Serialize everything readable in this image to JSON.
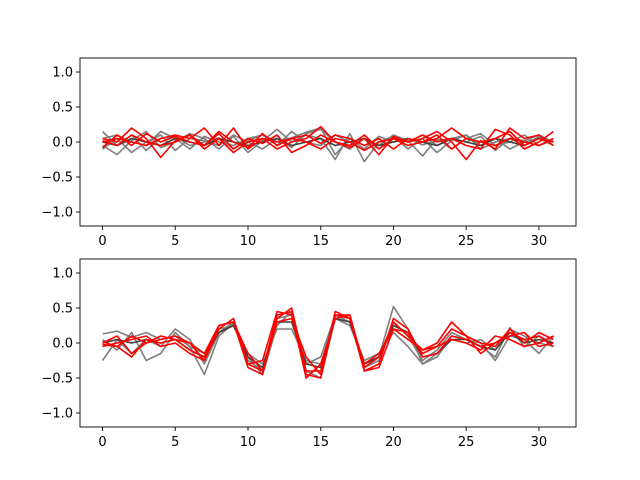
{
  "chart_data": [
    {
      "type": "line",
      "title": "",
      "xlabel": "",
      "ylabel": "",
      "xlim": [
        -1.55,
        32.55
      ],
      "ylim": [
        -1.2,
        1.2
      ],
      "xticks": [
        0,
        5,
        10,
        15,
        20,
        25,
        30
      ],
      "yticks": [
        -1.0,
        -0.5,
        0.0,
        0.5,
        1.0
      ],
      "xtick_labels": [
        "0",
        "5",
        "10",
        "15",
        "20",
        "25",
        "30"
      ],
      "ytick_labels": [
        "−1.0",
        "−0.5",
        "0.0",
        "0.5",
        "1.0"
      ],
      "grid": false,
      "x": [
        0,
        1,
        2,
        3,
        4,
        5,
        6,
        7,
        8,
        9,
        10,
        11,
        12,
        13,
        14,
        15,
        16,
        17,
        18,
        19,
        20,
        21,
        22,
        23,
        24,
        25,
        26,
        27,
        28,
        29,
        30,
        31
      ],
      "series": [
        {
          "color": "#7f7f7f",
          "values": [
            0.15,
            -0.05,
            0.1,
            -0.12,
            0.05,
            0.08,
            -0.05,
            0.0,
            0.06,
            -0.1,
            0.02,
            0.1,
            0.0,
            0.06,
            0.14,
            0.2,
            -0.18,
            0.05,
            -0.1,
            0.08,
            0.0,
            0.05,
            -0.04,
            0.02,
            0.05,
            0.0,
            0.08,
            -0.12,
            0.05,
            0.02,
            0.1,
            0.0
          ]
        },
        {
          "color": "#7f7f7f",
          "values": [
            -0.05,
            -0.18,
            0.02,
            0.15,
            -0.08,
            0.0,
            0.12,
            0.05,
            -0.1,
            0.08,
            -0.15,
            0.02,
            0.18,
            0.0,
            0.1,
            0.05,
            -0.25,
            0.12,
            -0.28,
            0.0,
            0.08,
            -0.1,
            0.05,
            -0.15,
            0.02,
            0.1,
            -0.05,
            0.05,
            -0.1,
            0.0,
            0.05,
            -0.05
          ]
        },
        {
          "color": "#7f7f7f",
          "values": [
            -0.1,
            0.05,
            -0.15,
            0.0,
            0.1,
            -0.12,
            0.05,
            0.02,
            -0.05,
            0.1,
            0.0,
            -0.1,
            0.05,
            -0.08,
            0.12,
            0.18,
            0.0,
            -0.1,
            0.05,
            -0.05,
            0.1,
            0.02,
            -0.2,
            0.05,
            -0.1,
            0.05,
            0.12,
            -0.05,
            0.0,
            0.1,
            -0.05,
            0.02
          ]
        },
        {
          "color": "#7f7f7f",
          "values": [
            0.05,
            0.1,
            0.0,
            -0.05,
            0.15,
            0.05,
            -0.1,
            0.08,
            0.0,
            -0.05,
            0.05,
            0.1,
            -0.05,
            0.15,
            0.0,
            -0.05,
            0.1,
            0.0,
            0.05,
            -0.1,
            0.05,
            0.0,
            0.1,
            -0.05,
            0.05,
            0.1,
            -0.1,
            0.0,
            0.05,
            -0.05,
            0.08,
            0.0
          ]
        },
        {
          "color": "#3f3f3f",
          "values": [
            0.0,
            -0.05,
            0.05,
            0.0,
            -0.05,
            0.05,
            0.0,
            -0.05,
            0.05,
            0.0,
            -0.05,
            0.0,
            0.05,
            -0.05,
            0.0,
            0.05,
            -0.05,
            0.0,
            0.05,
            -0.05,
            0.0,
            0.05,
            0.0,
            -0.05,
            0.05,
            0.0,
            -0.05,
            0.05,
            0.0,
            -0.05,
            0.05,
            0.0
          ]
        },
        {
          "color": "#ff0000",
          "values": [
            0.05,
            0.0,
            0.2,
            0.05,
            -0.22,
            0.02,
            0.1,
            -0.05,
            0.12,
            -0.1,
            0.05,
            -0.02,
            0.1,
            -0.15,
            -0.05,
            0.1,
            0.0,
            -0.08,
            0.05,
            -0.18,
            0.08,
            0.0,
            0.05,
            0.15,
            0.0,
            -0.25,
            0.02,
            -0.1,
            0.2,
            0.05,
            0.1,
            -0.05
          ]
        },
        {
          "color": "#ff0000",
          "values": [
            -0.08,
            0.1,
            -0.05,
            0.12,
            0.0,
            0.08,
            0.0,
            -0.05,
            0.15,
            0.0,
            -0.08,
            0.12,
            -0.05,
            0.05,
            0.0,
            -0.1,
            0.05,
            0.0,
            -0.12,
            0.0,
            0.05,
            0.0,
            0.1,
            0.0,
            0.05,
            -0.05,
            -0.1,
            0.18,
            0.1,
            -0.1,
            0.0,
            0.15
          ]
        },
        {
          "color": "#ff0000",
          "values": [
            0.0,
            0.05,
            0.0,
            -0.05,
            0.05,
            0.1,
            0.05,
            0.2,
            -0.05,
            0.2,
            -0.1,
            0.05,
            0.0,
            0.05,
            0.1,
            -0.02,
            0.1,
            0.05,
            -0.05,
            0.05,
            -0.1,
            0.05,
            0.0,
            0.05,
            0.2,
            0.05,
            0.0,
            0.05,
            0.15,
            -0.05,
            0.05,
            0.0
          ]
        },
        {
          "color": "#ff0000",
          "values": [
            0.02,
            -0.05,
            0.1,
            0.0,
            -0.05,
            0.0,
            0.1,
            -0.1,
            0.05,
            -0.15,
            0.0,
            0.05,
            -0.1,
            0.0,
            0.05,
            0.22,
            0.0,
            -0.05,
            0.1,
            -0.1,
            0.05,
            -0.05,
            0.0,
            0.1,
            -0.1,
            0.05,
            0.0,
            -0.05,
            0.05,
            0.0,
            -0.05,
            0.05
          ]
        }
      ]
    },
    {
      "type": "line",
      "title": "",
      "xlabel": "",
      "ylabel": "",
      "xlim": [
        -1.55,
        32.55
      ],
      "ylim": [
        -1.2,
        1.2
      ],
      "xticks": [
        0,
        5,
        10,
        15,
        20,
        25,
        30
      ],
      "yticks": [
        -1.0,
        -0.5,
        0.0,
        0.5,
        1.0
      ],
      "xtick_labels": [
        "0",
        "5",
        "10",
        "15",
        "20",
        "25",
        "30"
      ],
      "ytick_labels": [
        "−1.0",
        "−0.5",
        "0.0",
        "0.5",
        "1.0"
      ],
      "grid": false,
      "x": [
        0,
        1,
        2,
        3,
        4,
        5,
        6,
        7,
        8,
        9,
        10,
        11,
        12,
        13,
        14,
        15,
        16,
        17,
        18,
        19,
        20,
        21,
        22,
        23,
        24,
        25,
        26,
        27,
        28,
        29,
        30,
        31
      ],
      "series": [
        {
          "color": "#7f7f7f",
          "values": [
            0.13,
            0.17,
            0.08,
            0.15,
            0.05,
            0.1,
            -0.05,
            -0.45,
            0.1,
            0.28,
            -0.2,
            -0.45,
            0.25,
            0.45,
            -0.3,
            -0.2,
            0.4,
            0.3,
            -0.3,
            -0.2,
            0.52,
            0.2,
            -0.3,
            -0.2,
            0.1,
            0.05,
            -0.05,
            -0.2,
            0.22,
            -0.05,
            0.1,
            0.0
          ]
        },
        {
          "color": "#7f7f7f",
          "values": [
            -0.25,
            0.05,
            -0.15,
            0.05,
            -0.05,
            0.2,
            0.05,
            -0.3,
            0.15,
            0.3,
            -0.25,
            -0.4,
            0.35,
            0.4,
            -0.4,
            -0.5,
            0.35,
            0.3,
            -0.35,
            -0.25,
            0.3,
            0.1,
            -0.25,
            -0.1,
            0.15,
            0.05,
            0.0,
            -0.25,
            0.1,
            0.05,
            -0.15,
            0.1
          ]
        },
        {
          "color": "#7f7f7f",
          "values": [
            0.05,
            -0.1,
            0.15,
            -0.25,
            -0.15,
            0.15,
            -0.05,
            -0.15,
            0.2,
            0.25,
            -0.15,
            -0.3,
            0.2,
            0.2,
            -0.25,
            -0.3,
            0.35,
            0.25,
            -0.25,
            -0.15,
            0.15,
            -0.05,
            -0.3,
            -0.15,
            0.05,
            0.0,
            0.05,
            -0.1,
            0.2,
            0.1,
            0.0,
            -0.05
          ]
        },
        {
          "color": "#3f3f3f",
          "values": [
            0.0,
            0.05,
            0.0,
            0.05,
            0.0,
            0.05,
            -0.1,
            -0.2,
            0.15,
            0.25,
            -0.2,
            -0.35,
            0.3,
            0.3,
            -0.3,
            -0.35,
            0.35,
            0.3,
            -0.3,
            -0.2,
            0.25,
            0.15,
            -0.2,
            -0.15,
            0.05,
            0.05,
            -0.05,
            -0.1,
            0.15,
            0.0,
            0.05,
            0.0
          ]
        },
        {
          "color": "#ff0000",
          "values": [
            0.0,
            0.1,
            -0.15,
            0.0,
            0.1,
            0.05,
            -0.1,
            -0.2,
            0.25,
            0.3,
            -0.15,
            -0.4,
            0.3,
            0.35,
            -0.2,
            -0.45,
            0.45,
            0.35,
            -0.4,
            -0.3,
            0.35,
            0.2,
            -0.2,
            -0.15,
            0.1,
            0.05,
            -0.05,
            0.0,
            0.1,
            0.15,
            -0.05,
            0.0
          ]
        },
        {
          "color": "#ff0000",
          "values": [
            -0.05,
            0.0,
            0.05,
            0.1,
            -0.05,
            0.0,
            -0.15,
            -0.25,
            0.2,
            0.35,
            -0.3,
            -0.4,
            0.4,
            0.45,
            -0.45,
            -0.5,
            0.4,
            0.4,
            -0.35,
            -0.2,
            0.3,
            0.1,
            -0.1,
            -0.05,
            0.2,
            0.1,
            -0.15,
            0.0,
            0.15,
            0.05,
            0.1,
            -0.05
          ]
        },
        {
          "color": "#ff0000",
          "values": [
            0.02,
            -0.05,
            0.1,
            0.0,
            0.05,
            0.1,
            0.0,
            -0.15,
            0.25,
            0.3,
            -0.35,
            -0.45,
            0.35,
            0.5,
            -0.4,
            -0.4,
            0.4,
            0.35,
            -0.3,
            -0.15,
            0.2,
            0.05,
            -0.1,
            0.0,
            0.3,
            0.1,
            0.0,
            -0.05,
            0.2,
            0.0,
            0.15,
            0.05
          ]
        },
        {
          "color": "#ff0000",
          "values": [
            -0.02,
            -0.05,
            -0.2,
            0.05,
            0.0,
            0.05,
            0.0,
            -0.25,
            0.25,
            0.3,
            -0.3,
            -0.25,
            0.45,
            0.4,
            -0.5,
            -0.3,
            0.35,
            0.4,
            -0.4,
            -0.35,
            0.2,
            0.15,
            -0.15,
            -0.05,
            0.05,
            0.0,
            -0.1,
            0.1,
            0.05,
            -0.05,
            0.0,
            0.1
          ]
        }
      ]
    }
  ]
}
